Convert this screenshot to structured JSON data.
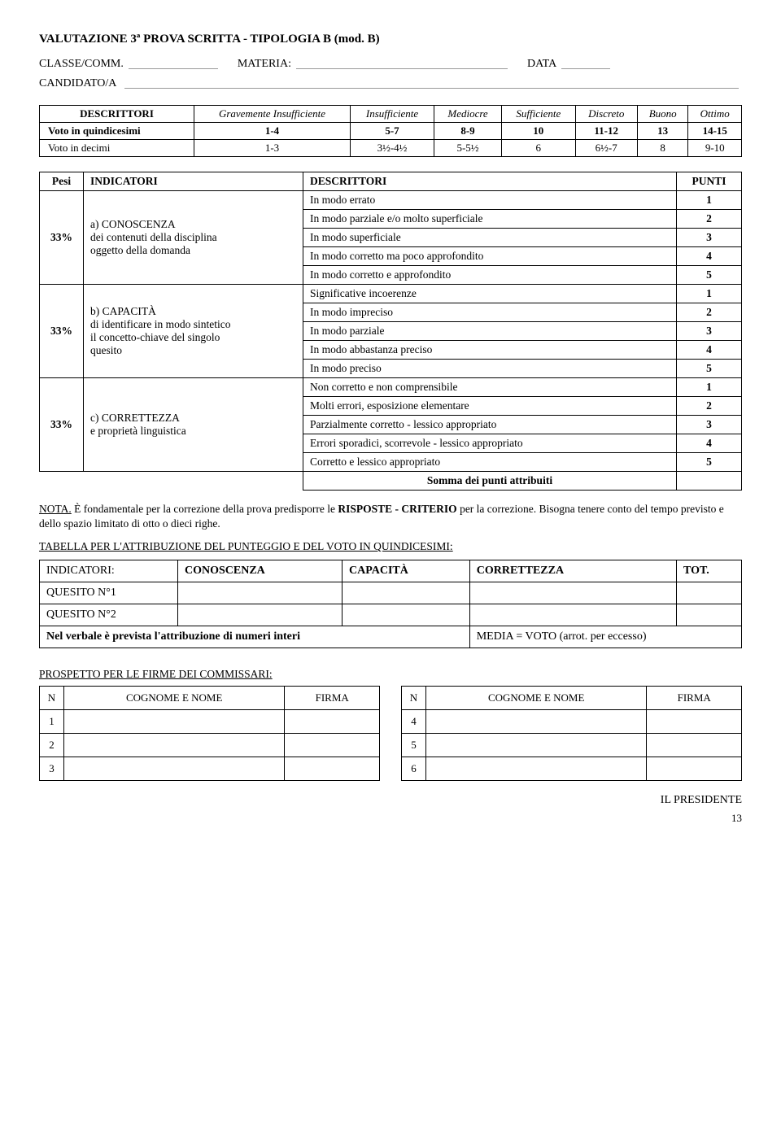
{
  "doc": {
    "title": "VALUTAZIONE 3ª PROVA  SCRITTA  -  TIPOLOGIA B (mod. B)",
    "classe_label": "CLASSE/COMM.",
    "materia_label": "MATERIA:",
    "data_label": "DATA",
    "candidato_label": "CANDIDATO/A"
  },
  "voti": {
    "descrittori_label": "DESCRITTORI",
    "headers": [
      "Gravemente Insufficiente",
      "Insufficiente",
      "Mediocre",
      "Sufficiente",
      "Discreto",
      "Buono",
      "Ottimo"
    ],
    "row1_label": "Voto in quindicesimi",
    "row1": [
      "1-4",
      "5-7",
      "8-9",
      "10",
      "11-12",
      "13",
      "14-15"
    ],
    "row2_label": "Voto in decimi",
    "row2": [
      "1-3",
      "3½-4½",
      "5-5½",
      "6",
      "6½-7",
      "8",
      "9-10"
    ]
  },
  "rubric": {
    "pesi_label": "Pesi",
    "indicatori_label": "INDICATORI",
    "descrittori_label": "DESCRITTORI",
    "punti_label": "PUNTI",
    "groups": [
      {
        "peso": "33%",
        "indicator": "a) CONOSCENZA\ndei contenuti della disciplina\noggetto della domanda",
        "rows": [
          {
            "d": "In modo errato",
            "p": "1"
          },
          {
            "d": "In modo parziale e/o molto superficiale",
            "p": "2"
          },
          {
            "d": "In modo superficiale",
            "p": "3"
          },
          {
            "d": "In modo corretto ma poco approfondito",
            "p": "4"
          },
          {
            "d": "In modo corretto e approfondito",
            "p": "5"
          }
        ]
      },
      {
        "peso": "33%",
        "indicator": "b) CAPACITÀ\ndi identificare in modo sintetico\nil concetto-chiave del singolo\nquesito",
        "rows": [
          {
            "d": "Significative incoerenze",
            "p": "1"
          },
          {
            "d": "In modo impreciso",
            "p": "2"
          },
          {
            "d": "In modo parziale",
            "p": "3"
          },
          {
            "d": "In modo abbastanza preciso",
            "p": "4"
          },
          {
            "d": "In modo preciso",
            "p": "5"
          }
        ]
      },
      {
        "peso": "33%",
        "indicator": "c) CORRETTEZZA\ne proprietà linguistica",
        "rows": [
          {
            "d": "Non corretto e non comprensibile",
            "p": "1"
          },
          {
            "d": "Molti errori, esposizione elementare",
            "p": "2"
          },
          {
            "d": "Parzialmente corretto - lessico appropriato",
            "p": "3"
          },
          {
            "d": "Errori sporadici, scorrevole - lessico appropriato",
            "p": "4"
          },
          {
            "d": "Corretto e lessico appropriato",
            "p": "5"
          }
        ]
      }
    ],
    "somma_label": "Somma dei punti attribuiti"
  },
  "nota": {
    "prefix": "NOTA.",
    "text1": " È fondamentale per la correzione della prova predisporre le ",
    "bold1": "RISPOSTE - CRITERIO",
    "text2": " per la correzione. Bisogna tenere conto del tempo previsto e dello spazio limitato di otto o dieci righe."
  },
  "tabella": {
    "heading": "TABELLA PER L'ATTRIBUZIONE DEL PUNTEGGIO E DEL VOTO IN QUINDICESIMI:",
    "cols": [
      "INDICATORI:",
      "CONOSCENZA",
      "CAPACITÀ",
      "CORRETTEZZA",
      "TOT."
    ],
    "rows": [
      "QUESITO N°1",
      "QUESITO N°2"
    ],
    "footer_left": "Nel verbale è prevista l'attribuzione di numeri interi",
    "footer_right": "MEDIA = VOTO (arrot. per eccesso)"
  },
  "prospetto": {
    "title": "PROSPETTO PER LE FIRME DEI COMMISSARI:",
    "headers": [
      "N",
      "COGNOME E NOME",
      "FIRMA"
    ],
    "left": [
      "1",
      "2",
      "3"
    ],
    "right": [
      "4",
      "5",
      "6"
    ]
  },
  "presidente": "IL PRESIDENTE",
  "page_number": "13"
}
